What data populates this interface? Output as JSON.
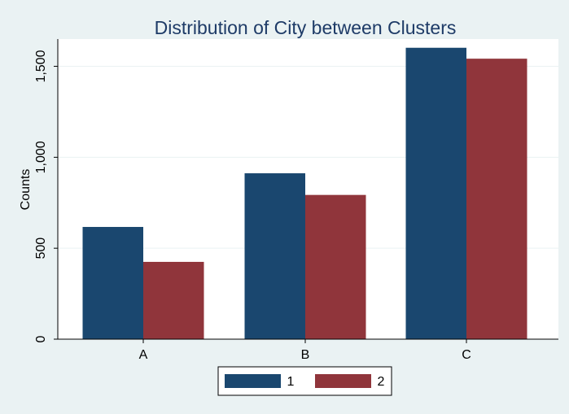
{
  "chart_data": {
    "type": "bar",
    "title": "Distribution of City between Clusters",
    "xlabel": "",
    "ylabel": "Counts",
    "categories": [
      "A",
      "B",
      "C"
    ],
    "series": [
      {
        "name": "1",
        "values": [
          617,
          912,
          1602
        ],
        "color": "#1a476f"
      },
      {
        "name": "2",
        "values": [
          425,
          793,
          1542
        ],
        "color": "#90353b"
      }
    ],
    "ylim": [
      0,
      1650
    ],
    "yticks": [
      0,
      500,
      1000,
      1500
    ],
    "ytick_labels": [
      "0",
      "500",
      "1,000",
      "1,500"
    ],
    "grid": true,
    "legend_position": "bottom"
  },
  "colors": {
    "background": "#eaf2f3",
    "plot_background": "#ffffff",
    "grid": "#eaf2f3",
    "title": "#1e3b67"
  }
}
